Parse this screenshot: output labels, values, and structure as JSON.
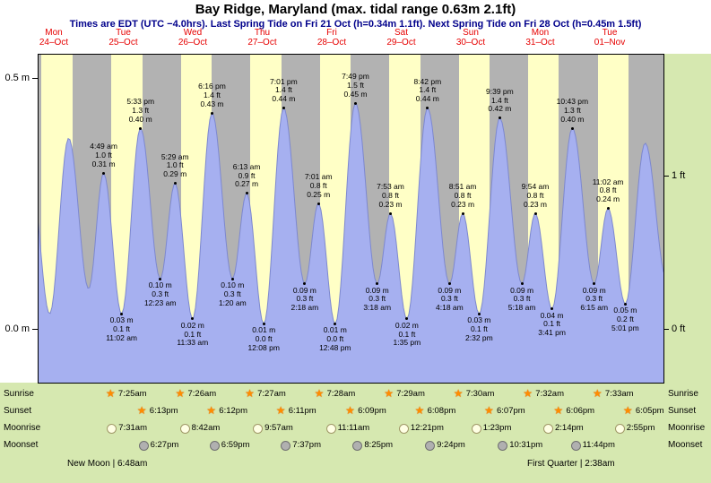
{
  "header": {
    "title": "Bay Ridge, Maryland (max. tidal range 0.63m 2.1ft)",
    "subtitle": "Times are EDT (UTC −4.0hrs). Last Spring Tide on Fri 21 Oct (h=0.34m 1.1ft). Next Spring Tide on Fri 28 Oct (h=0.45m 1.5ft)"
  },
  "chart_data": {
    "type": "area",
    "unit": "m",
    "ylim_m": [
      -0.107,
      0.548
    ],
    "days": [
      {
        "name": "Mon",
        "date": "24–Oct"
      },
      {
        "name": "Tue",
        "date": "25–Oct"
      },
      {
        "name": "Wed",
        "date": "26–Oct"
      },
      {
        "name": "Thu",
        "date": "27–Oct"
      },
      {
        "name": "Fri",
        "date": "28–Oct"
      },
      {
        "name": "Sat",
        "date": "29–Oct"
      },
      {
        "name": "Sun",
        "date": "30–Oct"
      },
      {
        "name": "Mon",
        "date": "31–Oct"
      },
      {
        "name": "Tue",
        "date": "01–Nov"
      }
    ],
    "axes": {
      "left": [
        {
          "label": "0.5 m",
          "m": 0.5
        },
        {
          "label": "0.0 m",
          "m": 0.0
        }
      ],
      "right": [
        {
          "label": "1 ft",
          "m": 0.3048
        },
        {
          "label": "0 ft",
          "m": 0.0
        }
      ]
    },
    "tide_events": [
      {
        "day": -1,
        "time": "4:05 am",
        "height_m": 0.28,
        "type": "high",
        "labeled": false
      },
      {
        "day": -1,
        "time": "10:10 am",
        "height_m": 0.03,
        "type": "low",
        "labeled": false
      },
      {
        "day": -1,
        "time": "4:45 pm",
        "height_m": 0.38,
        "type": "high",
        "labeled": false
      },
      {
        "day": -1,
        "time": "11:40 pm",
        "height_m": 0.08,
        "type": "low",
        "labeled": false
      },
      {
        "day": 0,
        "time": "4:49 am",
        "height_m": 0.31,
        "ft_label": "1.0 ft",
        "m_label": "0.31 m",
        "type": "high",
        "labeled": true
      },
      {
        "day": 0,
        "time": "11:02 am",
        "height_m": 0.03,
        "ft_label": "0.1 ft",
        "m_label": "0.03 m",
        "type": "low",
        "labeled": true
      },
      {
        "day": 0,
        "time": "5:33 pm",
        "height_m": 0.4,
        "ft_label": "1.3 ft",
        "m_label": "0.40 m",
        "type": "high",
        "labeled": true
      },
      {
        "day": 1,
        "time": "12:23 am",
        "height_m": 0.1,
        "ft_label": "0.3 ft",
        "m_label": "0.10 m",
        "type": "low",
        "labeled": true
      },
      {
        "day": 1,
        "time": "5:29 am",
        "height_m": 0.29,
        "ft_label": "1.0 ft",
        "m_label": "0.29 m",
        "type": "high",
        "labeled": true
      },
      {
        "day": 1,
        "time": "11:33 am",
        "height_m": 0.02,
        "ft_label": "0.1 ft",
        "m_label": "0.02 m",
        "type": "low",
        "labeled": true
      },
      {
        "day": 1,
        "time": "6:16 pm",
        "height_m": 0.43,
        "ft_label": "1.4 ft",
        "m_label": "0.43 m",
        "type": "high",
        "labeled": true
      },
      {
        "day": 2,
        "time": "1:20 am",
        "height_m": 0.1,
        "ft_label": "0.3 ft",
        "m_label": "0.10 m",
        "type": "low",
        "labeled": true
      },
      {
        "day": 2,
        "time": "6:13 am",
        "height_m": 0.27,
        "ft_label": "0.9 ft",
        "m_label": "0.27 m",
        "type": "high",
        "labeled": true
      },
      {
        "day": 2,
        "time": "12:08 pm",
        "height_m": 0.01,
        "ft_label": "0.0 ft",
        "m_label": "0.01 m",
        "type": "low",
        "labeled": true
      },
      {
        "day": 2,
        "time": "7:01 pm",
        "height_m": 0.44,
        "ft_label": "1.4 ft",
        "m_label": "0.44 m",
        "type": "high",
        "labeled": true
      },
      {
        "day": 3,
        "time": "2:18 am",
        "height_m": 0.09,
        "ft_label": "0.3 ft",
        "m_label": "0.09 m",
        "type": "low",
        "labeled": true
      },
      {
        "day": 3,
        "time": "7:01 am",
        "height_m": 0.25,
        "ft_label": "0.8 ft",
        "m_label": "0.25 m",
        "type": "high",
        "labeled": true
      },
      {
        "day": 3,
        "time": "12:48 pm",
        "height_m": 0.01,
        "ft_label": "0.0 ft",
        "m_label": "0.01 m",
        "type": "low",
        "labeled": true
      },
      {
        "day": 3,
        "time": "7:49 pm",
        "height_m": 0.45,
        "ft_label": "1.5 ft",
        "m_label": "0.45 m",
        "type": "high",
        "labeled": true
      },
      {
        "day": 4,
        "time": "3:18 am",
        "height_m": 0.09,
        "ft_label": "0.3 ft",
        "m_label": "0.09 m",
        "type": "low",
        "labeled": true
      },
      {
        "day": 4,
        "time": "7:53 am",
        "height_m": 0.23,
        "ft_label": "0.8 ft",
        "m_label": "0.23 m",
        "type": "high",
        "labeled": true
      },
      {
        "day": 4,
        "time": "1:35 pm",
        "height_m": 0.02,
        "ft_label": "0.1 ft",
        "m_label": "0.02 m",
        "type": "low",
        "labeled": true
      },
      {
        "day": 4,
        "time": "8:42 pm",
        "height_m": 0.44,
        "ft_label": "1.4 ft",
        "m_label": "0.44 m",
        "type": "high",
        "labeled": true
      },
      {
        "day": 5,
        "time": "4:18 am",
        "height_m": 0.09,
        "ft_label": "0.3 ft",
        "m_label": "0.09 m",
        "type": "low",
        "labeled": true
      },
      {
        "day": 5,
        "time": "8:51 am",
        "height_m": 0.23,
        "ft_label": "0.8 ft",
        "m_label": "0.23 m",
        "type": "high",
        "labeled": true
      },
      {
        "day": 5,
        "time": "2:32 pm",
        "height_m": 0.03,
        "ft_label": "0.1 ft",
        "m_label": "0.03 m",
        "type": "low",
        "labeled": true
      },
      {
        "day": 5,
        "time": "9:39 pm",
        "height_m": 0.42,
        "ft_label": "1.4 ft",
        "m_label": "0.42 m",
        "type": "high",
        "labeled": true
      },
      {
        "day": 6,
        "time": "5:18 am",
        "height_m": 0.09,
        "ft_label": "0.3 ft",
        "m_label": "0.09 m",
        "type": "low",
        "labeled": true
      },
      {
        "day": 6,
        "time": "9:54 am",
        "height_m": 0.23,
        "ft_label": "0.8 ft",
        "m_label": "0.23 m",
        "type": "high",
        "labeled": true
      },
      {
        "day": 6,
        "time": "3:41 pm",
        "height_m": 0.04,
        "ft_label": "0.1 ft",
        "m_label": "0.04 m",
        "type": "low",
        "labeled": true
      },
      {
        "day": 6,
        "time": "10:43 pm",
        "height_m": 0.4,
        "ft_label": "1.3 ft",
        "m_label": "0.40 m",
        "type": "high",
        "labeled": true
      },
      {
        "day": 7,
        "time": "6:15 am",
        "height_m": 0.09,
        "ft_label": "0.3 ft",
        "m_label": "0.09 m",
        "type": "low",
        "labeled": true
      },
      {
        "day": 7,
        "time": "11:02 am",
        "height_m": 0.24,
        "ft_label": "0.8 ft",
        "m_label": "0.24 m",
        "type": "high",
        "labeled": true
      },
      {
        "day": 7,
        "time": "5:01 pm",
        "height_m": 0.05,
        "ft_label": "0.2 ft",
        "m_label": "0.05 m",
        "type": "low",
        "labeled": true
      },
      {
        "day": 7,
        "time": "11:52 pm",
        "height_m": 0.37,
        "type": "high",
        "labeled": false
      },
      {
        "day": 8,
        "time": "7:14 am",
        "height_m": 0.1,
        "type": "low",
        "labeled": false
      }
    ],
    "colors": {
      "day_band": "#ffffc6",
      "night_band": "#b2b2b2",
      "tide_fill": "#a6b0f0",
      "day_label_red": "#e60000",
      "subtitle_navy": "#00008b",
      "page_green": "#d6e8b0"
    }
  },
  "almanac": {
    "rows": [
      {
        "label": "Sunrise",
        "icon": "sunrise-star",
        "times": [
          "7:25am",
          "7:26am",
          "7:27am",
          "7:28am",
          "7:29am",
          "7:30am",
          "7:32am",
          "7:33am"
        ]
      },
      {
        "label": "Sunset",
        "icon": "sunset-star",
        "times": [
          "6:13pm",
          "6:12pm",
          "6:11pm",
          "6:09pm",
          "6:08pm",
          "6:07pm",
          "6:06pm",
          "6:05pm"
        ]
      },
      {
        "label": "Moonrise",
        "icon": "moonrise-circle",
        "times": [
          "7:31am",
          "8:42am",
          "9:57am",
          "11:11am",
          "12:21pm",
          "1:23pm",
          "2:14pm",
          "2:55pm"
        ]
      },
      {
        "label": "Moonset",
        "icon": "moonset-circle",
        "times": [
          "6:27pm",
          "6:59pm",
          "7:37pm",
          "8:25pm",
          "9:24pm",
          "10:31pm",
          "11:44pm"
        ]
      }
    ],
    "new_moon_note": "New Moon | 6:48am",
    "first_quarter_note": "First Quarter | 2:38am"
  }
}
